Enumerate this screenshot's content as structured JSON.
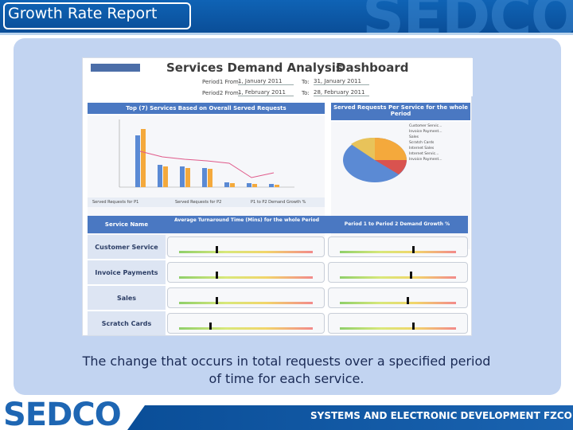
{
  "header": {
    "title": "Growth Rate Report",
    "watermark": "SEDCO"
  },
  "dashboard": {
    "title_part1": "Services Demand Analysis",
    "title_part2": "Dashboard",
    "period1_label": "Period1 From:",
    "period1_from": "1, January 2011",
    "period1_to_label": "To:",
    "period1_to": "31, January 2011",
    "period2_label": "Period2 From:",
    "period2_from": "1, February 2011",
    "period2_to_label": "To:",
    "period2_to": "28, February 2011",
    "left_chart_title": "Top (7) Services Based on Overall Served Requests",
    "right_chart_title": "Served Requests Per Service for the whole Period",
    "legend": [
      "Served Requests for P1",
      "Served Requests for P2",
      "P1 to P2 Demand Growth %"
    ],
    "pie_legend": [
      "Customer Servic...",
      "Invoice Payment...",
      "Sales",
      "Scratch Cards",
      "Internet Sales",
      "Internet Servic...",
      "Invoice Payment..."
    ],
    "table_headers": [
      "Service Name",
      "Average Turnaround Time (Mins) for the whole Period",
      "Period 1 to Period 2 Demand Growth %"
    ],
    "rows": [
      {
        "name": "Customer Service"
      },
      {
        "name": "Invoice Payments"
      },
      {
        "name": "Sales"
      },
      {
        "name": "Scratch Cards"
      }
    ]
  },
  "caption": "The change that occurs in total requests over a specified period of time for each service.",
  "footer": {
    "logo": "SEDCO",
    "tagline": "SYSTEMS AND ELECTRONIC DEVELOPMENT FZCO"
  },
  "colors": {
    "header": "#0a4e98",
    "panel": "#c2d4f1",
    "accent": "#4a78c2"
  }
}
